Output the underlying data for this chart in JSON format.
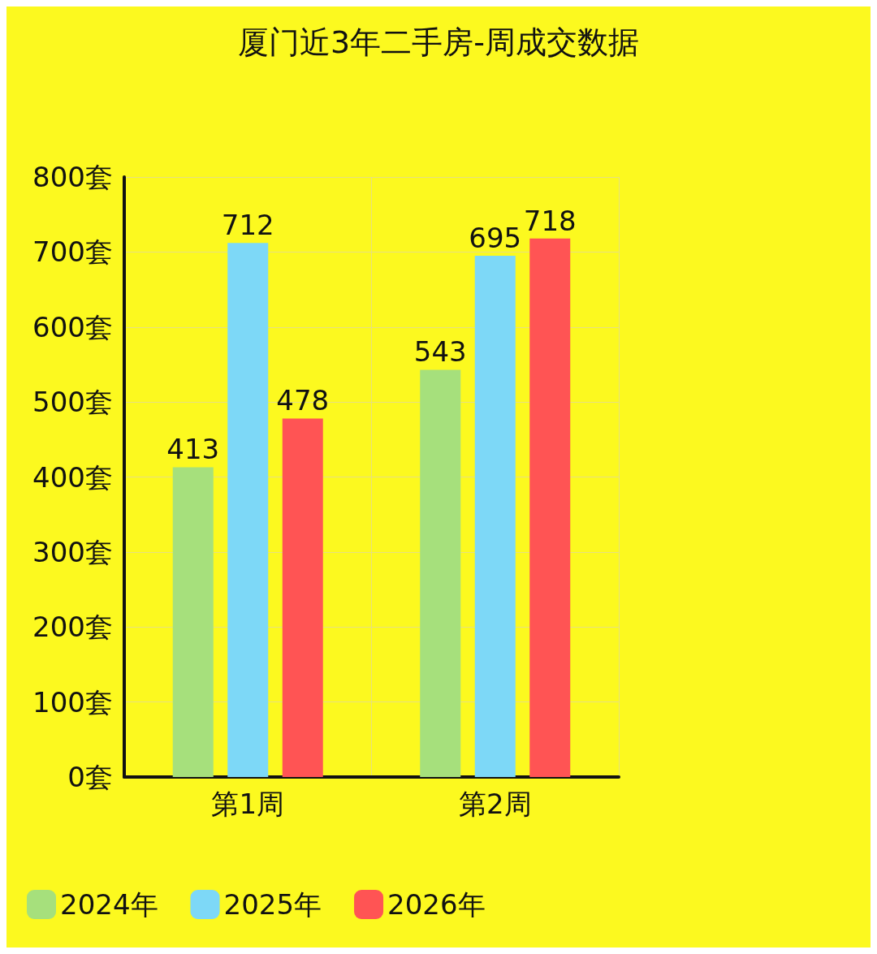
{
  "chart_data": {
    "type": "bar",
    "title": "厦门近3年二手房-周成交数据",
    "categories": [
      "第1周",
      "第2周"
    ],
    "series": [
      {
        "name": "2024年",
        "color": "#a6e07c",
        "values": [
          413,
          543
        ]
      },
      {
        "name": "2025年",
        "color": "#7dd8f7",
        "values": [
          712,
          695
        ]
      },
      {
        "name": "2026年",
        "color": "#ff5454",
        "values": [
          478,
          718
        ]
      }
    ],
    "ylim": [
      0,
      800
    ],
    "yticks": [
      {
        "value": 0,
        "label": "0套"
      },
      {
        "value": 100,
        "label": "100套"
      },
      {
        "value": 200,
        "label": "200套"
      },
      {
        "value": 300,
        "label": "300套"
      },
      {
        "value": 400,
        "label": "400套"
      },
      {
        "value": 500,
        "label": "500套"
      },
      {
        "value": 600,
        "label": "600套"
      },
      {
        "value": 700,
        "label": "700套"
      },
      {
        "value": 800,
        "label": "800套"
      }
    ],
    "grid": true,
    "legend": "bottom",
    "data_labels": true
  }
}
